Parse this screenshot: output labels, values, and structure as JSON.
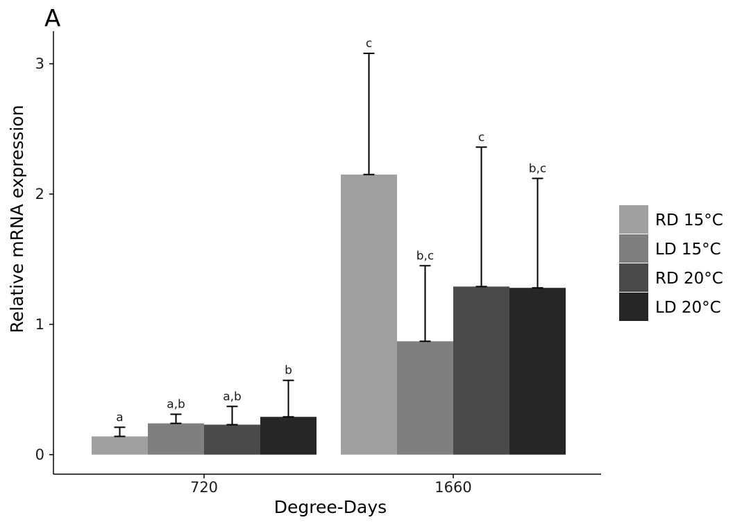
{
  "panel_label": "A",
  "chart_data": {
    "type": "bar",
    "xlabel": "Degree-Days",
    "ylabel": "Relative mRNA expression",
    "categories": [
      "720",
      "1660"
    ],
    "ylim": [
      -0.15,
      3.25
    ],
    "yticks": [
      0,
      1,
      2,
      3
    ],
    "grid": false,
    "legend_placement": "right",
    "series": [
      {
        "name": "RD 15°C",
        "color": "#a0a0a0",
        "values": [
          0.14,
          2.15
        ],
        "error": [
          0.07,
          0.93
        ],
        "significance": [
          "a",
          "c"
        ]
      },
      {
        "name": "LD 15°C",
        "color": "#7f7f7f",
        "values": [
          0.24,
          0.87
        ],
        "error": [
          0.07,
          0.58
        ],
        "significance": [
          "a,b",
          "b,c"
        ]
      },
      {
        "name": "RD 20°C",
        "color": "#4a4a4a",
        "values": [
          0.23,
          1.29
        ],
        "error": [
          0.14,
          1.07
        ],
        "significance": [
          "a,b",
          "c"
        ]
      },
      {
        "name": "LD 20°C",
        "color": "#262626",
        "values": [
          0.29,
          1.28
        ],
        "error": [
          0.28,
          0.84
        ],
        "significance": [
          "b",
          "b,c"
        ]
      }
    ]
  }
}
